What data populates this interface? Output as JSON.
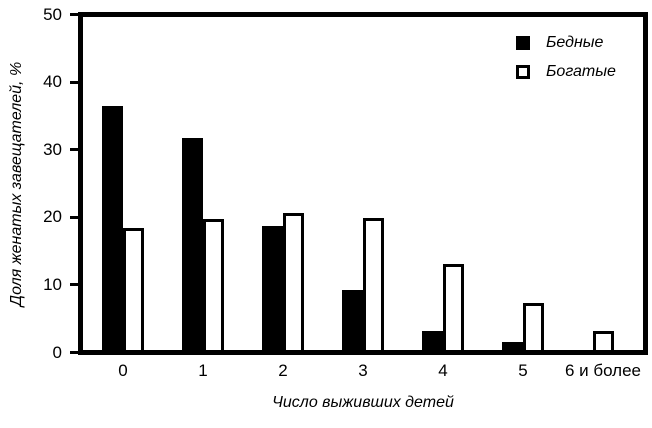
{
  "chart_data": {
    "type": "bar",
    "categories": [
      "0",
      "1",
      "2",
      "3",
      "4",
      "5",
      "6 и более"
    ],
    "series": [
      {
        "name": "Бедные",
        "fill": "#000000",
        "values": [
          36.7,
          31.8,
          18.6,
          9.0,
          2.8,
          1.2,
          0
        ]
      },
      {
        "name": "Богатые",
        "fill": "#ffffff",
        "values": [
          18.3,
          19.6,
          20.6,
          19.8,
          12.9,
          7.0,
          2.8
        ]
      }
    ],
    "xlabel": "Число выживших детей",
    "ylabel": "Доля женатых завещателей, %",
    "ylim": [
      0,
      50
    ],
    "yticks": [
      0,
      10,
      20,
      30,
      40,
      50
    ],
    "legend_position": "top-right",
    "grid": false,
    "axis_color": "#000000",
    "background": "#ffffff"
  }
}
